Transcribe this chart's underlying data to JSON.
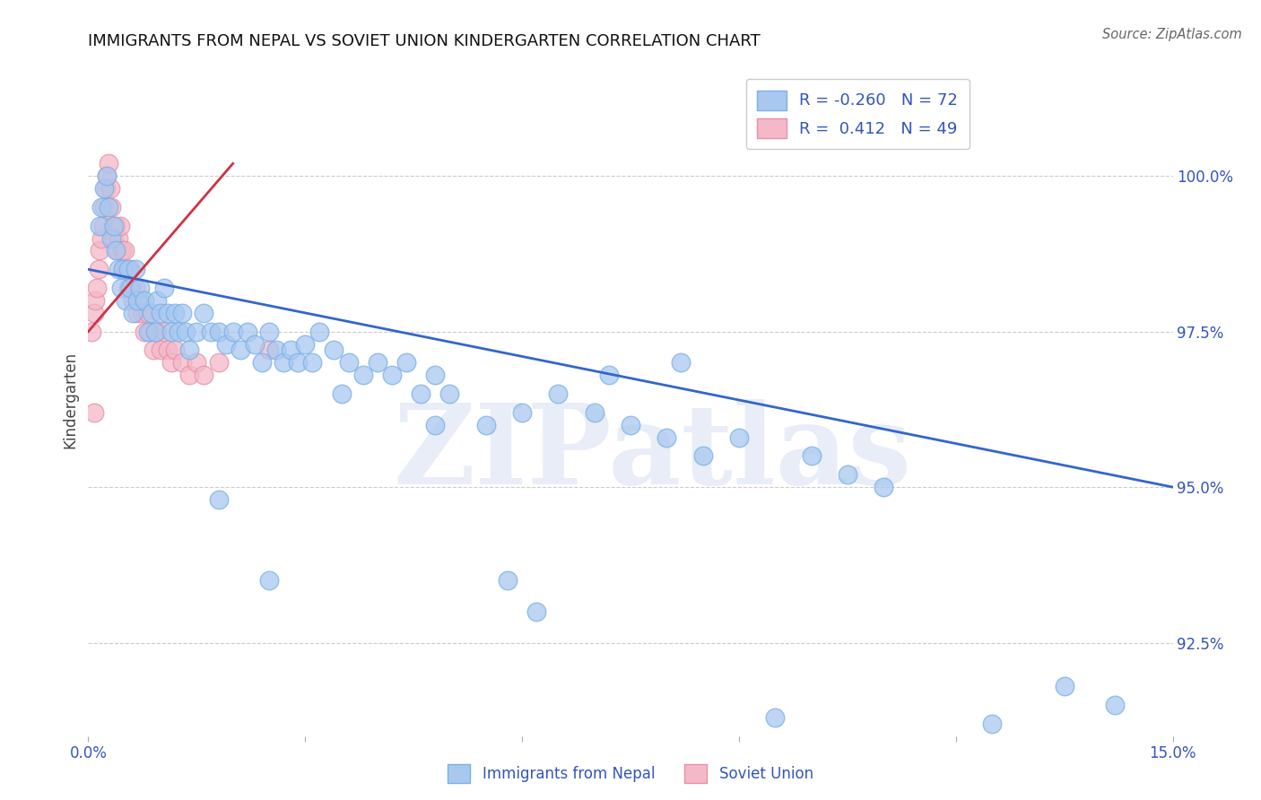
{
  "title": "IMMIGRANTS FROM NEPAL VS SOVIET UNION KINDERGARTEN CORRELATION CHART",
  "source_text": "Source: ZipAtlas.com",
  "ylabel": "Kindergarten",
  "watermark": "ZIPatlas",
  "xlim": [
    0.0,
    15.0
  ],
  "ylim": [
    91.0,
    101.8
  ],
  "yticks": [
    92.5,
    95.0,
    97.5,
    100.0
  ],
  "yticklabels": [
    "92.5%",
    "95.0%",
    "97.5%",
    "100.0%"
  ],
  "nepal_color": "#a8c8f0",
  "soviet_color": "#f4b8c8",
  "nepal_edge_color": "#7ab0e8",
  "soviet_edge_color": "#e890a8",
  "line_nepal_color": "#3366cc",
  "line_soviet_color": "#cc3344",
  "legend_R_nepal": "-0.260",
  "legend_N_nepal": "72",
  "legend_R_soviet": "0.412",
  "legend_N_soviet": "49",
  "legend_label_nepal": "Immigrants from Nepal",
  "legend_label_soviet": "Soviet Union",
  "nepal_x": [
    0.15,
    0.18,
    0.22,
    0.25,
    0.28,
    0.32,
    0.35,
    0.38,
    0.42,
    0.45,
    0.48,
    0.52,
    0.55,
    0.58,
    0.62,
    0.65,
    0.68,
    0.72,
    0.78,
    0.82,
    0.88,
    0.92,
    0.95,
    1.0,
    1.05,
    1.1,
    1.15,
    1.2,
    1.25,
    1.3,
    1.35,
    1.4,
    1.5,
    1.6,
    1.7,
    1.8,
    1.9,
    2.0,
    2.1,
    2.2,
    2.3,
    2.4,
    2.5,
    2.6,
    2.7,
    2.8,
    2.9,
    3.0,
    3.1,
    3.2,
    3.4,
    3.6,
    3.8,
    4.0,
    4.2,
    4.4,
    4.6,
    4.8,
    5.0,
    5.5,
    6.0,
    6.5,
    7.0,
    7.5,
    8.0,
    8.5,
    9.0,
    10.0,
    10.5,
    11.0,
    13.5,
    14.2
  ],
  "nepal_y": [
    99.2,
    99.5,
    99.8,
    100.0,
    99.5,
    99.0,
    99.2,
    98.8,
    98.5,
    98.2,
    98.5,
    98.0,
    98.5,
    98.2,
    97.8,
    98.5,
    98.0,
    98.2,
    98.0,
    97.5,
    97.8,
    97.5,
    98.0,
    97.8,
    98.2,
    97.8,
    97.5,
    97.8,
    97.5,
    97.8,
    97.5,
    97.2,
    97.5,
    97.8,
    97.5,
    97.5,
    97.3,
    97.5,
    97.2,
    97.5,
    97.3,
    97.0,
    97.5,
    97.2,
    97.0,
    97.2,
    97.0,
    97.3,
    97.0,
    97.5,
    97.2,
    97.0,
    96.8,
    97.0,
    96.8,
    97.0,
    96.5,
    96.8,
    96.5,
    96.0,
    96.2,
    96.5,
    96.2,
    96.0,
    95.8,
    95.5,
    95.8,
    95.5,
    95.2,
    95.0,
    91.8,
    91.5
  ],
  "nepal_x_extra": [
    1.8,
    2.5,
    3.5,
    4.8,
    5.8,
    6.2,
    7.2,
    8.2,
    9.5,
    12.5
  ],
  "nepal_y_extra": [
    94.8,
    93.5,
    96.5,
    96.0,
    93.5,
    93.0,
    96.8,
    97.0,
    91.3,
    91.2
  ],
  "soviet_x": [
    0.05,
    0.08,
    0.1,
    0.12,
    0.14,
    0.16,
    0.18,
    0.2,
    0.22,
    0.24,
    0.26,
    0.28,
    0.3,
    0.32,
    0.34,
    0.36,
    0.38,
    0.4,
    0.42,
    0.44,
    0.46,
    0.48,
    0.5,
    0.52,
    0.55,
    0.58,
    0.6,
    0.62,
    0.65,
    0.68,
    0.72,
    0.75,
    0.78,
    0.82,
    0.85,
    0.9,
    0.95,
    1.0,
    1.05,
    1.1,
    1.15,
    1.2,
    1.3,
    1.4,
    1.5,
    1.6,
    1.8,
    2.5,
    0.08
  ],
  "soviet_y": [
    97.5,
    97.8,
    98.0,
    98.2,
    98.5,
    98.8,
    99.0,
    99.2,
    99.5,
    99.8,
    100.0,
    100.2,
    99.8,
    99.5,
    99.2,
    99.0,
    99.2,
    98.8,
    99.0,
    99.2,
    98.8,
    98.5,
    98.8,
    98.5,
    98.2,
    98.5,
    98.2,
    98.0,
    98.2,
    97.8,
    98.0,
    97.8,
    97.5,
    97.8,
    97.5,
    97.2,
    97.5,
    97.2,
    97.5,
    97.2,
    97.0,
    97.2,
    97.0,
    96.8,
    97.0,
    96.8,
    97.0,
    97.2,
    96.2
  ],
  "blue_line_x": [
    0.0,
    15.0
  ],
  "blue_line_y": [
    98.5,
    95.0
  ],
  "pink_line_x": [
    0.0,
    2.0
  ],
  "pink_line_y": [
    97.5,
    100.2
  ],
  "grid_color": "#cccccc",
  "title_fontsize": 13,
  "tick_label_color": "#3355bb",
  "background_color": "#ffffff"
}
